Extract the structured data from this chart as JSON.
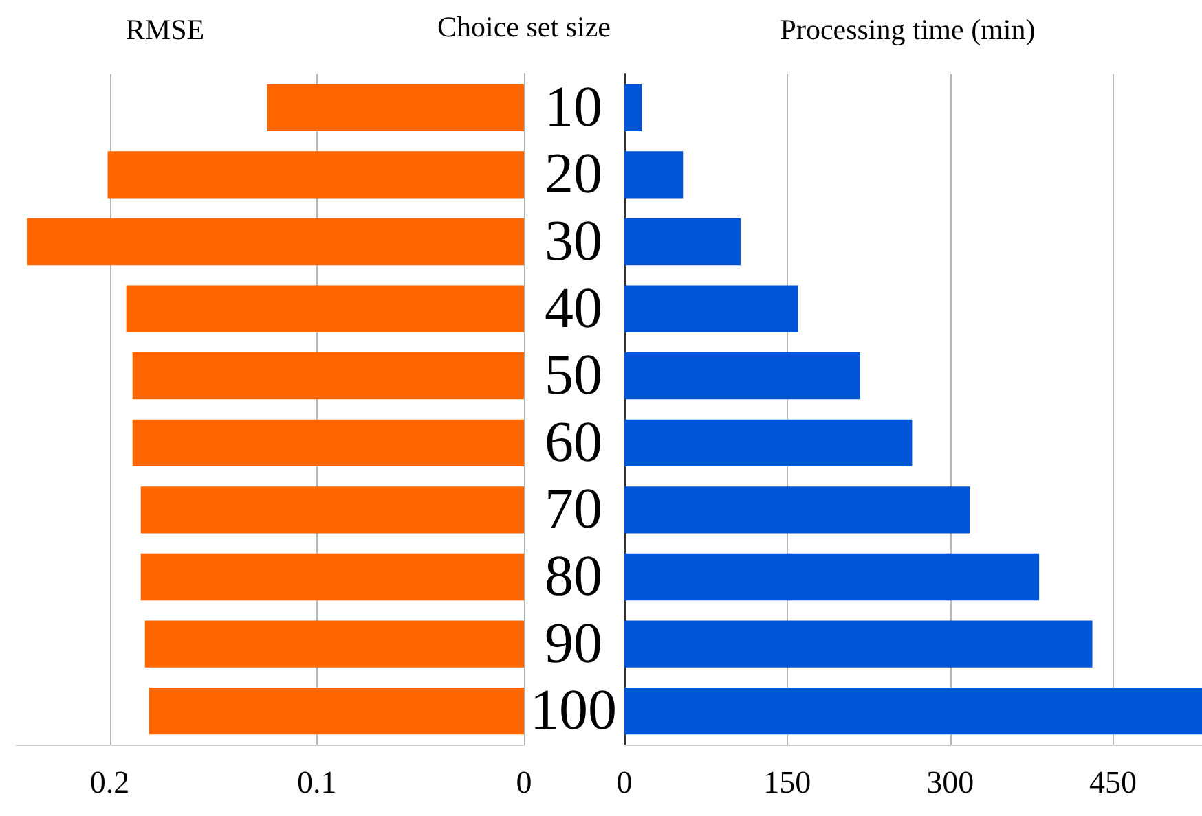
{
  "chart_data": [
    {
      "type": "bar",
      "orientation": "horizontal",
      "title": "RMSE",
      "ylabel": "Choice set size",
      "categories": [
        "10",
        "20",
        "30",
        "40",
        "50",
        "60",
        "70",
        "80",
        "90",
        "100"
      ],
      "values": [
        0.124,
        0.201,
        0.24,
        0.192,
        0.189,
        0.189,
        0.185,
        0.185,
        0.183,
        0.181
      ],
      "color": "#ff6600",
      "xlim": [
        0.245,
        0
      ],
      "xticks": [
        0,
        0.1,
        0.2
      ],
      "grid": "x"
    },
    {
      "type": "bar",
      "orientation": "horizontal",
      "title": "Processing time (min)",
      "categories": [
        "10",
        "20",
        "30",
        "40",
        "50",
        "60",
        "70",
        "80",
        "90",
        "100"
      ],
      "values": [
        16,
        54,
        107,
        160,
        217,
        265,
        318,
        382,
        431,
        532
      ],
      "color": "#0055d6",
      "xlim": [
        0,
        532
      ],
      "xticks": [
        0,
        150,
        300,
        450
      ],
      "grid": "x",
      "tick_labels": "x"
    }
  ]
}
